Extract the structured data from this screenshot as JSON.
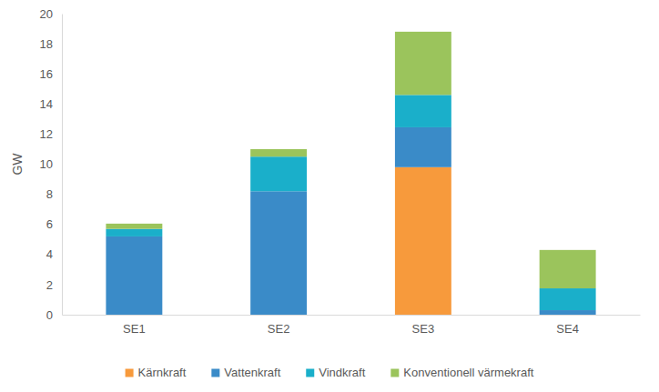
{
  "chart_data": {
    "type": "bar",
    "stacked": true,
    "ylabel": "GW",
    "categories": [
      "SE1",
      "SE2",
      "SE3",
      "SE4"
    ],
    "series": [
      {
        "name": "Kärnkraft",
        "color": "#f79a3c",
        "values": [
          0,
          0,
          9.8,
          0
        ]
      },
      {
        "name": "Vattenkraft",
        "color": "#3a8bc8",
        "values": [
          5.2,
          8.2,
          2.65,
          0.3
        ]
      },
      {
        "name": "Vindkraft",
        "color": "#1aafca",
        "values": [
          0.5,
          2.3,
          2.15,
          1.45
        ]
      },
      {
        "name": "Konventionell värmekraft",
        "color": "#9bc45c",
        "values": [
          0.35,
          0.5,
          4.2,
          2.55
        ]
      }
    ],
    "ylim": [
      0,
      20
    ],
    "yticks": [
      0,
      2,
      4,
      6,
      8,
      10,
      12,
      14,
      16,
      18,
      20
    ],
    "grid": false,
    "legend": "bottom"
  }
}
